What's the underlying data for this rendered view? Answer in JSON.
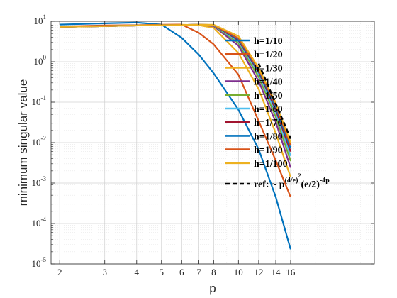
{
  "chart_data": {
    "type": "line",
    "xlabel": "p",
    "ylabel": "minimum singular value",
    "xscale": "log",
    "yscale": "log",
    "xlim": [
      1.85,
      34
    ],
    "ylim": [
      1e-05,
      10
    ],
    "grid": true,
    "minor_grid": true,
    "legend_position": "top-right",
    "xticks": [
      2,
      3,
      4,
      5,
      6,
      7,
      8,
      10,
      12,
      14,
      16
    ],
    "yticks": [
      {
        "value": 1e-05,
        "base": "10",
        "exp": "-5"
      },
      {
        "value": 0.0001,
        "base": "10",
        "exp": "-4"
      },
      {
        "value": 0.001,
        "base": "10",
        "exp": "-3"
      },
      {
        "value": 0.01,
        "base": "10",
        "exp": "-2"
      },
      {
        "value": 0.1,
        "base": "10",
        "exp": "-1"
      },
      {
        "value": 1,
        "base": "10",
        "exp": "0"
      },
      {
        "value": 10,
        "base": "10",
        "exp": "1"
      }
    ],
    "x": [
      2,
      3,
      4,
      5,
      6,
      7,
      8,
      10,
      12,
      14,
      16
    ],
    "series": [
      {
        "name": "h=1/10",
        "color": "#0072BD",
        "values": [
          8.3,
          8.9,
          9.3,
          8.3,
          3.9,
          1.5,
          0.52,
          0.065,
          0.0068,
          0.00045,
          2.3e-05
        ]
      },
      {
        "name": "h=1/20",
        "color": "#D95319",
        "values": [
          7.4,
          7.9,
          8.0,
          8.2,
          8.3,
          5.2,
          2.7,
          0.48,
          0.034,
          0.0036,
          0.00045
        ]
      },
      {
        "name": "h=1/30",
        "color": "#EDB120",
        "values": [
          7.3,
          7.6,
          7.9,
          8.0,
          8.2,
          8.0,
          6.9,
          1.65,
          0.21,
          0.017,
          0.0014
        ]
      },
      {
        "name": "h=1/40",
        "color": "#7E2F8E",
        "values": [
          7.3,
          7.6,
          7.9,
          8.0,
          8.1,
          8.2,
          7.6,
          2.5,
          0.33,
          0.032,
          0.0024
        ]
      },
      {
        "name": "h=1/50",
        "color": "#77AC30",
        "values": [
          7.3,
          7.6,
          7.9,
          8.0,
          8.1,
          8.2,
          7.9,
          2.9,
          0.42,
          0.043,
          0.0035
        ]
      },
      {
        "name": "h=1/60",
        "color": "#4DBEEE",
        "values": [
          7.3,
          7.6,
          7.9,
          8.0,
          8.1,
          8.2,
          8.0,
          3.2,
          0.5,
          0.055,
          0.0047
        ]
      },
      {
        "name": "h=1/70",
        "color": "#A2142F",
        "values": [
          7.3,
          7.6,
          7.9,
          8.0,
          8.1,
          8.2,
          8.1,
          3.4,
          0.56,
          0.065,
          0.006
        ]
      },
      {
        "name": "h=1/80",
        "color": "#0072BD",
        "values": [
          7.3,
          7.6,
          7.9,
          8.0,
          8.1,
          8.2,
          8.1,
          3.6,
          0.6,
          0.075,
          0.0072
        ]
      },
      {
        "name": "h=1/90",
        "color": "#D95319",
        "values": [
          7.3,
          7.6,
          7.9,
          8.0,
          8.1,
          8.2,
          8.1,
          3.8,
          0.65,
          0.085,
          0.0085
        ]
      },
      {
        "name": "h=1/100",
        "color": "#EDB120",
        "values": [
          7.3,
          7.6,
          7.9,
          8.0,
          8.1,
          8.2,
          8.2,
          4.3,
          0.7,
          0.095,
          0.01
        ]
      }
    ],
    "reference": {
      "label_prefix": "ref: ~ p",
      "label_sup1": "(4/e)",
      "label_sup2": "2",
      "label_mid": "(e/2)",
      "label_sup3": "-4p",
      "color": "#000000",
      "x": [
        12,
        16
      ],
      "values": [
        0.9,
        0.0125
      ]
    }
  }
}
